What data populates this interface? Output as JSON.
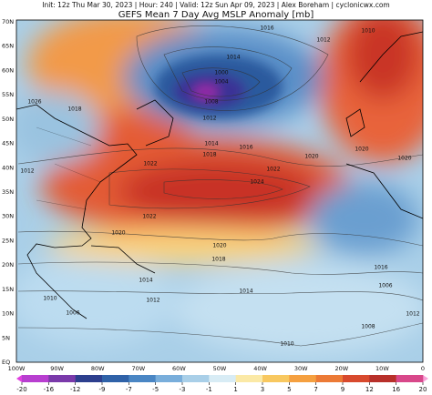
{
  "header": {
    "info": "Init: 12z Thu Mar 30, 2023 | Hour: 240 | Valid: 12z Sun Apr 09, 2023 | Alex Boreham | cyclonicwx.com",
    "title": "GEFS Mean 7 Day Avg MSLP Anomaly [mb]"
  },
  "lat_labels": [
    "70N",
    "65N",
    "60N",
    "55N",
    "50N",
    "45N",
    "40N",
    "35N",
    "30N",
    "25N",
    "20N",
    "15N",
    "10N",
    "5N",
    "EQ"
  ],
  "lon_labels": [
    "100W",
    "90W",
    "80W",
    "70W",
    "60W",
    "50W",
    "40W",
    "30W",
    "20W",
    "10W",
    "0"
  ],
  "colorbar_ticks": [
    -20,
    -16,
    -12,
    -9,
    -7,
    -5,
    -3,
    -1,
    1,
    3,
    5,
    7,
    9,
    12,
    16,
    20
  ],
  "contour_labels": [
    "1016",
    "1012",
    "1010",
    "1014",
    "1000",
    "1004",
    "1008",
    "1012",
    "1014",
    "1016",
    "1018",
    "1020",
    "1020",
    "1022",
    "1024",
    "1022",
    "1018",
    "1026",
    "1020",
    "1012",
    "1022",
    "1020",
    "1020",
    "1018",
    "1014",
    "1016",
    "1012",
    "1010",
    "1006",
    "1006",
    "1014",
    "1012",
    "1010",
    "1008"
  ]
}
